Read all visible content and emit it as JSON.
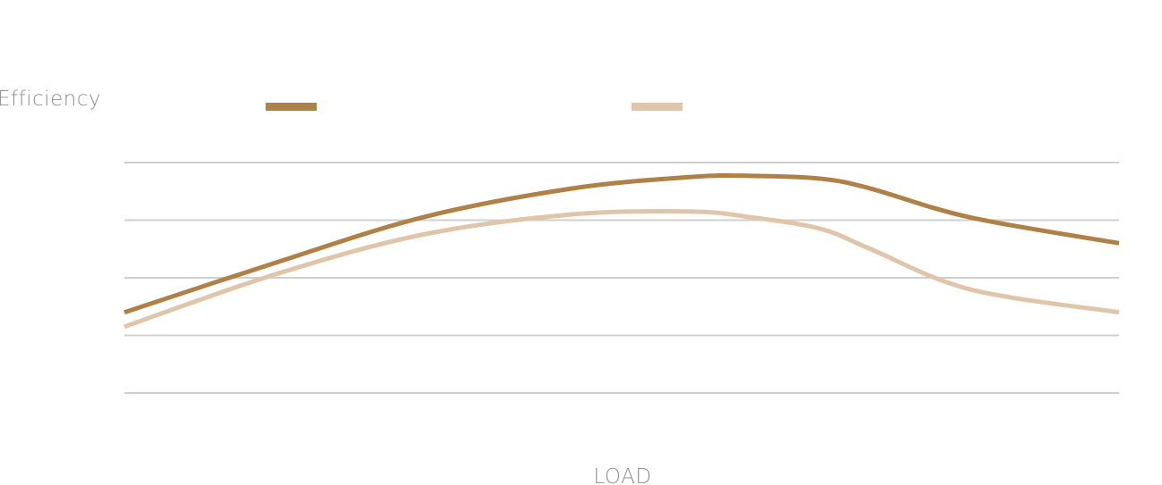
{
  "chart_data": {
    "type": "line",
    "title": "",
    "xlabel": "LOAD",
    "ylabel": "Efficiency",
    "grid": true,
    "legend_position": "top",
    "xlim": [
      0,
      100
    ],
    "ylim": [
      0,
      4
    ],
    "x": [
      0,
      15,
      30,
      45,
      57,
      63,
      70,
      75,
      85,
      100
    ],
    "series": [
      {
        "color": "#b08146",
        "values": [
          1.4,
          2.25,
          3.05,
          3.55,
          3.75,
          3.77,
          3.72,
          3.55,
          3.05,
          2.6
        ]
      },
      {
        "color": "#dfc6aa",
        "values": [
          1.15,
          2.05,
          2.75,
          3.1,
          3.15,
          3.05,
          2.85,
          2.5,
          1.8,
          1.4
        ]
      }
    ]
  }
}
